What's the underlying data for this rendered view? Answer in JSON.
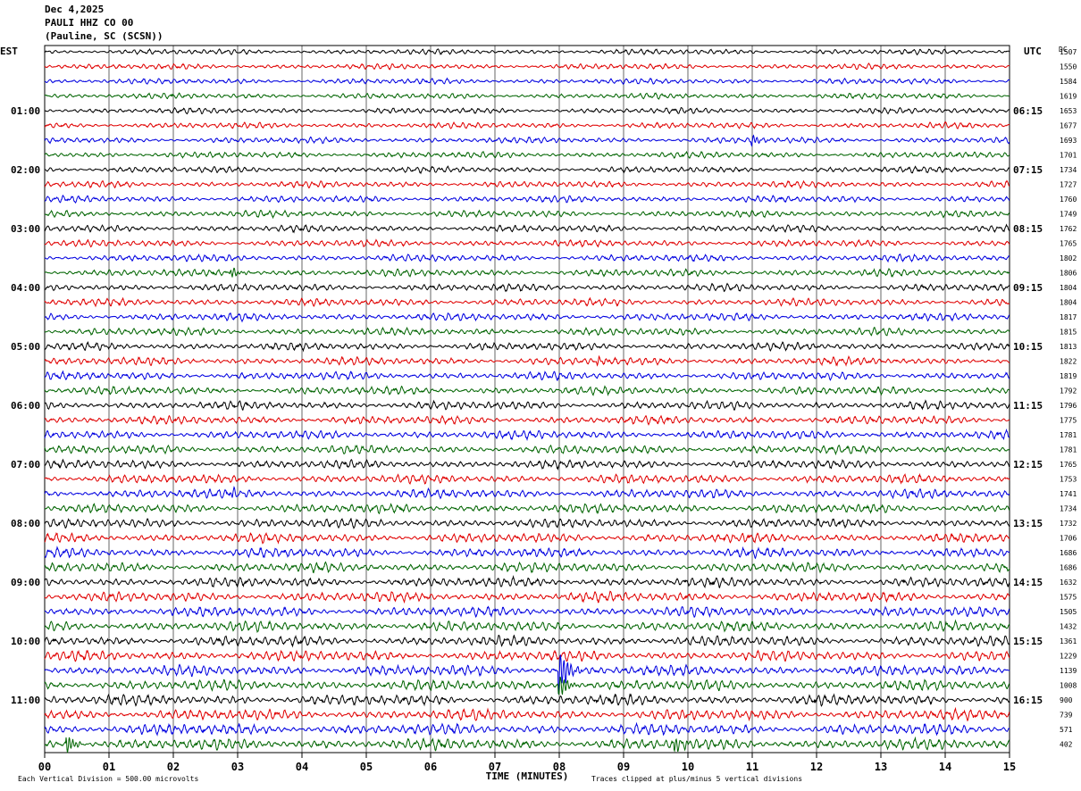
{
  "header": {
    "date": "Dec 4,2025",
    "station": "PAULI HHZ CO 00",
    "location": "(Pauline, SC (SCSN))"
  },
  "chart_data": {
    "type": "line",
    "title": "",
    "left_axis_label": "EST",
    "right_axis_label": "UTC",
    "right_column_label": "DC",
    "xlabel": "TIME (MINUTES)",
    "x_ticks": [
      "00",
      "01",
      "02",
      "03",
      "04",
      "05",
      "06",
      "07",
      "08",
      "09",
      "10",
      "11",
      "12",
      "13",
      "14",
      "15"
    ],
    "xlim": [
      0,
      15
    ],
    "est_labels": [
      "01:00",
      "02:00",
      "03:00",
      "04:00",
      "05:00",
      "06:00",
      "07:00",
      "08:00",
      "09:00",
      "10:00",
      "11:00"
    ],
    "utc_labels": [
      "06:15",
      "07:15",
      "08:15",
      "09:15",
      "10:15",
      "11:15",
      "12:15",
      "13:15",
      "14:15",
      "15:15",
      "16:15"
    ],
    "trace_colors": [
      "#000000",
      "#e00000",
      "#0000e0",
      "#006400"
    ],
    "dc_offsets": [
      1507,
      1550,
      1584,
      1619,
      1653,
      1677,
      1693,
      1701,
      1734,
      1727,
      1760,
      1749,
      1762,
      1765,
      1802,
      1806,
      1804,
      1804,
      1817,
      1815,
      1813,
      1822,
      1819,
      1792,
      1796,
      1775,
      1781,
      1781,
      1765,
      1753,
      1741,
      1734,
      1732,
      1706,
      1686,
      1686,
      1632,
      1575,
      1505,
      1432,
      1361,
      1229,
      1139,
      1008,
      900,
      739,
      571,
      402
    ],
    "events": [
      {
        "row": 6,
        "minute": 11.0,
        "amplitude": 1.0
      },
      {
        "row": 15,
        "minute": 2.9,
        "amplitude": 1.1
      },
      {
        "row": 21,
        "minute": 8.6,
        "amplitude": 0.8
      },
      {
        "row": 30,
        "minute": 2.9,
        "amplitude": 0.8
      },
      {
        "row": 42,
        "minute": 8.0,
        "amplitude": 6.0
      },
      {
        "row": 43,
        "minute": 8.0,
        "amplitude": 3.0
      },
      {
        "row": 47,
        "minute": 0.35,
        "amplitude": 2.2
      },
      {
        "row": 47,
        "minute": 9.8,
        "amplitude": 1.8
      }
    ]
  },
  "footer": {
    "scale_note": "Each Vertical Division =  500.00 microvolts",
    "clip_note": "Traces clipped at plus/minus 5 vertical divisions"
  }
}
